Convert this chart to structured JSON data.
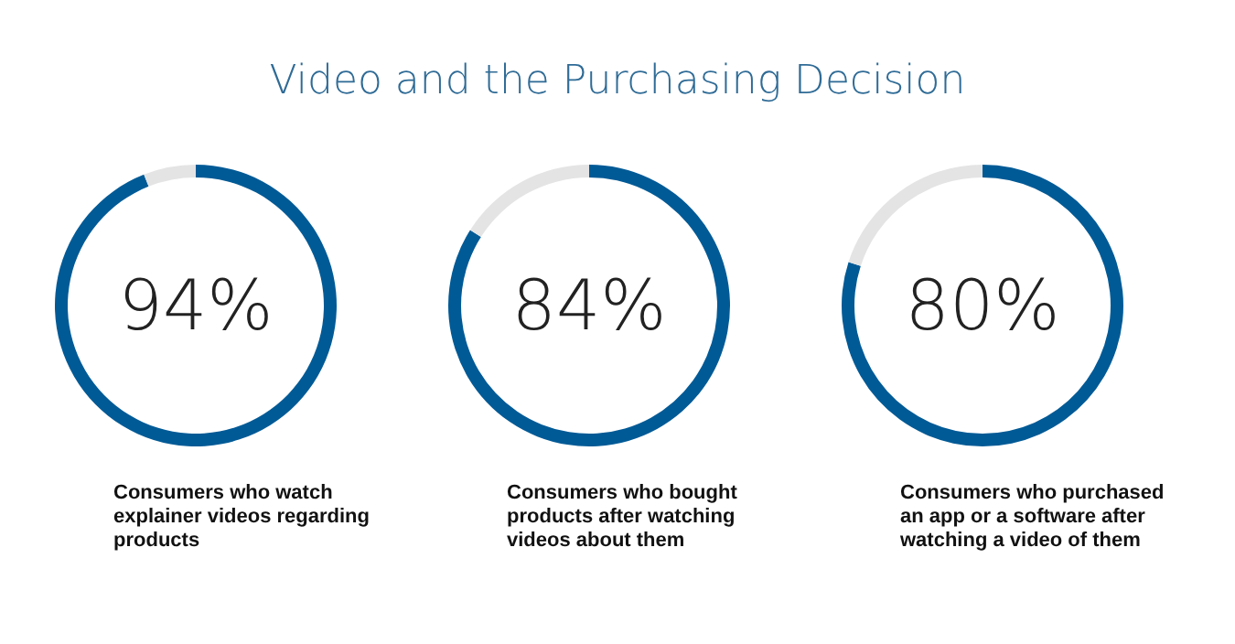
{
  "chart_data": [
    {
      "type": "donut",
      "title": "Video and the Purchasing Decision",
      "categories": [
        "Consumers who watch explainer videos regarding products",
        null
      ],
      "values": [
        94,
        6
      ],
      "colors": [
        "#005a96",
        "#e4e4e4"
      ],
      "value_labels": [
        "94%",
        null
      ]
    },
    {
      "type": "donut",
      "categories": [
        "Consumers who bought products after watching videos about them",
        null
      ],
      "values": [
        84,
        16
      ],
      "colors": [
        "#005a96",
        "#e4e4e4"
      ],
      "value_labels": [
        "84%",
        null
      ]
    },
    {
      "type": "donut",
      "categories": [
        "Consumers who purchased an app or a software after watching a video of them",
        null
      ],
      "values": [
        80,
        20
      ],
      "colors": [
        "#005a96",
        "#e4e4e4"
      ],
      "value_labels": [
        "80%",
        null
      ]
    }
  ]
}
